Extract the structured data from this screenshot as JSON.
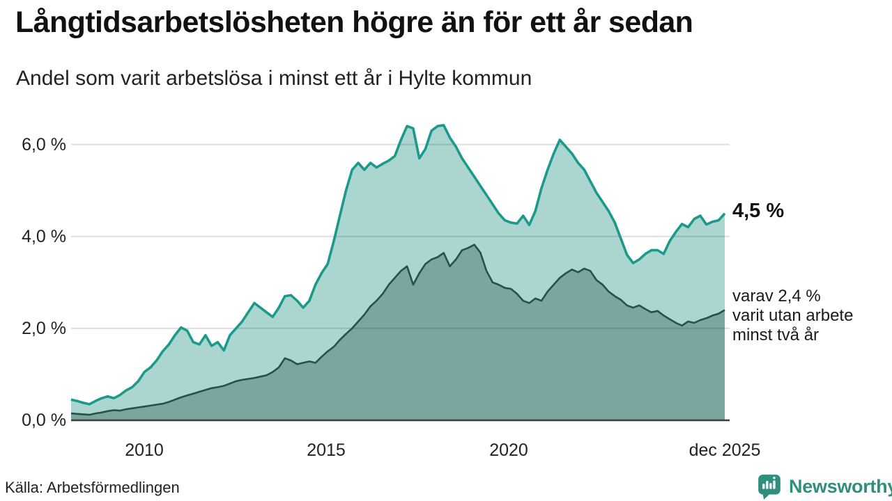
{
  "header": {
    "title": "Långtidsarbetslösheten högre än för ett år sedan",
    "subtitle": "Andel som varit arbetslösa i minst ett år i Hylte kommun"
  },
  "annotations": {
    "series1_end_label": "4,5 %",
    "series2_end_label": "varav 2,4 %\nvarit utan arbete\nminst två år"
  },
  "footer": {
    "source": "Källa: Arbetsförmedlingen",
    "brand_name": "Newsworthy",
    "brand_icon": "bar-chart-speech-bubble-icon"
  },
  "colors": {
    "series1_line": "#1b9a8b",
    "series1_fill": "#aad6cf",
    "series2_line": "#25514b",
    "series2_fill": "#7ba69f",
    "gridline": "rgba(20,20,20,0.14)",
    "baseline": "#3d3d3d",
    "brand": "#2f8e7e",
    "text": "#1a1a1a"
  },
  "chart_data": {
    "type": "area",
    "title": "Långtidsarbetslösheten högre än för ett år sedan",
    "subtitle": "Andel som varit arbetslösa i minst ett år i Hylte kommun",
    "unit": "%",
    "x_unit": "year (values every 2nd month)",
    "xlim": [
      2008.0,
      2025.92
    ],
    "ylim": [
      0,
      6.6
    ],
    "grid": "horizontal",
    "x_start": 2008.0,
    "x_step": 0.16667,
    "x_ticks": [
      {
        "value": 2010,
        "label": "2010"
      },
      {
        "value": 2015,
        "label": "2015"
      },
      {
        "value": 2020,
        "label": "2020"
      },
      {
        "value": 2025.92,
        "label": "dec 2025"
      }
    ],
    "y_ticks": [
      {
        "value": 0,
        "label": "0,0 %"
      },
      {
        "value": 2,
        "label": "2,0 %"
      },
      {
        "value": 4,
        "label": "4,0 %"
      },
      {
        "value": 6,
        "label": "6,0 %"
      }
    ],
    "series": [
      {
        "name": "Andel som varit arbetslösa i minst ett år",
        "end_value": 4.5,
        "end_label": "4,5 %",
        "values": [
          0.45,
          0.42,
          0.38,
          0.35,
          0.42,
          0.48,
          0.52,
          0.48,
          0.55,
          0.65,
          0.72,
          0.85,
          1.05,
          1.15,
          1.3,
          1.5,
          1.65,
          1.85,
          2.02,
          1.95,
          1.7,
          1.65,
          1.85,
          1.62,
          1.7,
          1.52,
          1.85,
          2.0,
          2.15,
          2.35,
          2.55,
          2.45,
          2.35,
          2.25,
          2.45,
          2.7,
          2.72,
          2.6,
          2.45,
          2.6,
          2.95,
          3.2,
          3.4,
          3.9,
          4.45,
          5.0,
          5.45,
          5.6,
          5.45,
          5.6,
          5.5,
          5.58,
          5.65,
          5.75,
          6.1,
          6.4,
          6.35,
          5.7,
          5.9,
          6.3,
          6.4,
          6.42,
          6.15,
          5.95,
          5.7,
          5.5,
          5.3,
          5.1,
          4.9,
          4.7,
          4.5,
          4.35,
          4.3,
          4.28,
          4.45,
          4.25,
          4.55,
          5.05,
          5.45,
          5.8,
          6.1,
          5.95,
          5.8,
          5.6,
          5.45,
          5.2,
          4.95,
          4.75,
          4.55,
          4.3,
          3.95,
          3.6,
          3.42,
          3.5,
          3.62,
          3.7,
          3.7,
          3.62,
          3.9,
          4.1,
          4.27,
          4.2,
          4.38,
          4.45,
          4.26,
          4.32,
          4.35,
          4.5
        ]
      },
      {
        "name": "varav utan arbete i minst två år",
        "end_value": 2.4,
        "end_label": "varav 2,4 % varit utan arbete minst två år",
        "values": [
          0.15,
          0.14,
          0.13,
          0.12,
          0.15,
          0.17,
          0.2,
          0.22,
          0.21,
          0.24,
          0.26,
          0.28,
          0.3,
          0.32,
          0.34,
          0.36,
          0.4,
          0.45,
          0.5,
          0.54,
          0.58,
          0.62,
          0.66,
          0.7,
          0.72,
          0.75,
          0.8,
          0.85,
          0.88,
          0.9,
          0.92,
          0.95,
          0.98,
          1.05,
          1.15,
          1.35,
          1.3,
          1.22,
          1.25,
          1.28,
          1.25,
          1.38,
          1.5,
          1.6,
          1.75,
          1.88,
          2.0,
          2.15,
          2.3,
          2.48,
          2.6,
          2.75,
          2.95,
          3.1,
          3.25,
          3.35,
          2.95,
          3.2,
          3.4,
          3.5,
          3.55,
          3.64,
          3.35,
          3.5,
          3.7,
          3.75,
          3.82,
          3.65,
          3.25,
          3.0,
          2.95,
          2.88,
          2.86,
          2.75,
          2.6,
          2.55,
          2.65,
          2.6,
          2.8,
          2.95,
          3.1,
          3.2,
          3.28,
          3.22,
          3.3,
          3.25,
          3.05,
          2.95,
          2.8,
          2.7,
          2.62,
          2.5,
          2.45,
          2.5,
          2.42,
          2.35,
          2.38,
          2.28,
          2.2,
          2.12,
          2.06,
          2.15,
          2.12,
          2.18,
          2.22,
          2.28,
          2.32,
          2.4
        ]
      }
    ]
  }
}
